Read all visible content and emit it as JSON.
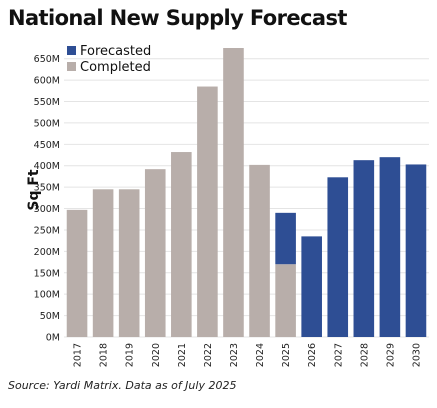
{
  "chart_data": {
    "type": "bar",
    "title": "National New Supply Forecast",
    "ylabel": "Sq Ft",
    "xlabel": "",
    "ylim": [
      0,
      675
    ],
    "yticks": [
      0,
      50,
      100,
      150,
      200,
      250,
      300,
      350,
      400,
      450,
      500,
      550,
      600,
      650
    ],
    "ytick_labels": [
      "0M",
      "50M",
      "100M",
      "150M",
      "200M",
      "250M",
      "300M",
      "350M",
      "400M",
      "450M",
      "500M",
      "550M",
      "600M",
      "650M"
    ],
    "grid": true,
    "legend_position": "top-left",
    "stacked": true,
    "categories": [
      "2017",
      "2018",
      "2019",
      "2020",
      "2021",
      "2022",
      "2023",
      "2024",
      "2025",
      "2026",
      "2027",
      "2028",
      "2029",
      "2030"
    ],
    "series": [
      {
        "name": "Completed",
        "color": "#b8aeaa",
        "values": [
          297,
          345,
          345,
          392,
          432,
          585,
          675,
          402,
          170,
          0,
          0,
          0,
          0,
          0
        ]
      },
      {
        "name": "Forecasted",
        "color": "#2e4e94",
        "values": [
          0,
          0,
          0,
          0,
          0,
          0,
          0,
          0,
          120,
          235,
          373,
          413,
          420,
          403
        ]
      }
    ],
    "legend_order": [
      "Forecasted",
      "Completed"
    ]
  },
  "source": "Source: Yardi Matrix. Data as of July 2025"
}
